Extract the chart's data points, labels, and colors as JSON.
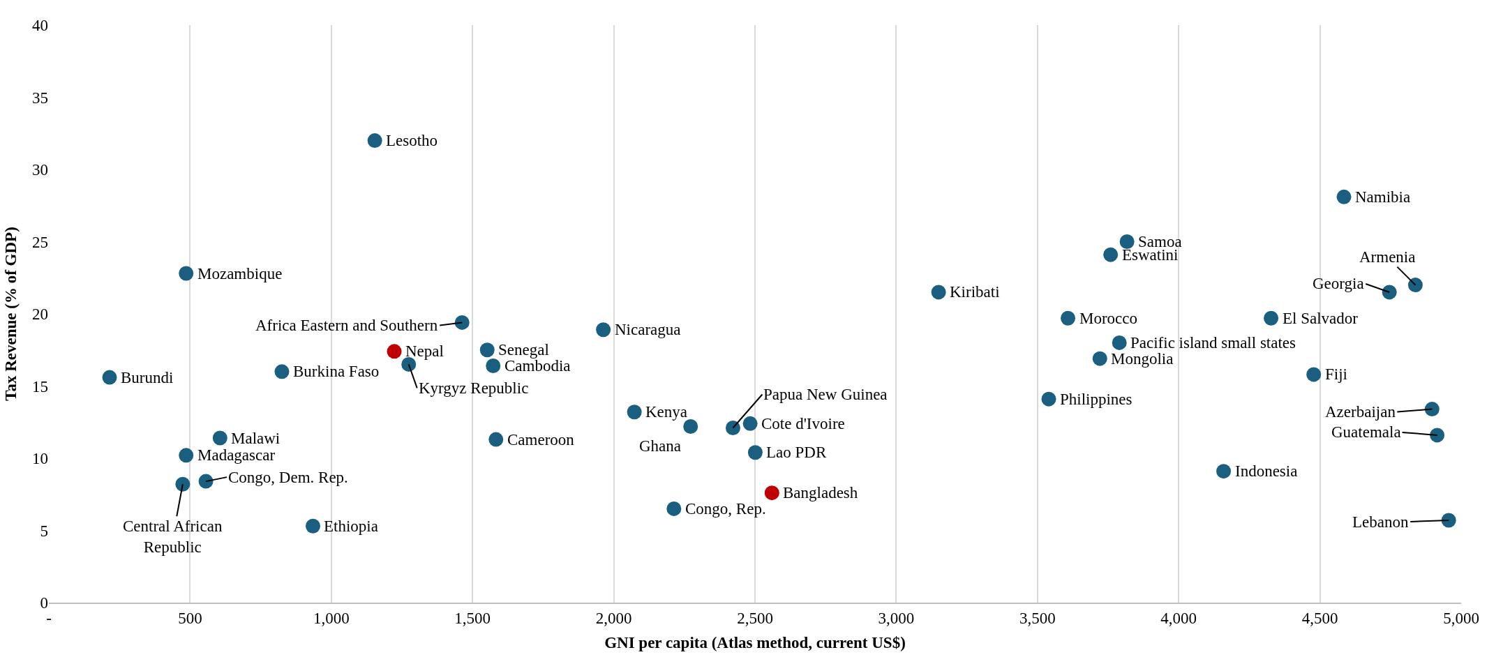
{
  "chart_data": {
    "type": "scatter",
    "xlabel": "GNI per capita (Atlas method, current US$)",
    "ylabel": "Tax Revenue (% of GDP)",
    "xlim": [
      0,
      5000
    ],
    "xticks": [
      {
        "value": 0,
        "label": "-"
      },
      500,
      {
        "value": 1000,
        "label": "1,000"
      },
      {
        "value": 1500,
        "label": "1,500"
      },
      {
        "value": 2000,
        "label": "2,000"
      },
      {
        "value": 2500,
        "label": "2,500"
      },
      {
        "value": 3000,
        "label": "3,000"
      },
      {
        "value": 3500,
        "label": "3,500"
      },
      {
        "value": 4000,
        "label": "4,000"
      },
      {
        "value": 4500,
        "label": "4,500"
      },
      {
        "value": 5000,
        "label": "5,000"
      }
    ],
    "ylim": [
      0,
      40
    ],
    "yticks": [
      0,
      5,
      10,
      15,
      20,
      25,
      30,
      35,
      40
    ],
    "grid": "x",
    "marker": "circle",
    "series": [
      {
        "color": "#1a5e80",
        "x": [
          1154,
          486,
          215,
          825,
          606,
          486,
          474,
          556,
          935,
          1463,
          1274,
          1552,
          1573,
          1583,
          1963,
          2073,
          2272,
          2213,
          2422,
          2483,
          2501,
          3150,
          3540,
          3608,
          3721,
          3790,
          3759,
          3817,
          4585,
          4746,
          4838,
          4327,
          4478,
          4897,
          4915,
          4159,
          4956
        ],
        "values": [
          32.0,
          22.8,
          15.6,
          16.0,
          11.4,
          10.2,
          8.2,
          8.4,
          5.3,
          19.4,
          16.5,
          17.5,
          16.4,
          11.3,
          18.9,
          13.2,
          12.2,
          6.5,
          12.1,
          12.4,
          10.4,
          21.5,
          14.1,
          19.7,
          16.9,
          18.0,
          24.1,
          25.0,
          28.1,
          21.5,
          22.0,
          19.7,
          15.8,
          13.4,
          11.6,
          9.1,
          5.7
        ]
      },
      {
        "color": "#c00000",
        "x": [
          1223,
          2560
        ],
        "values": [
          17.4,
          7.6
        ]
      }
    ],
    "annotations": [
      {
        "text": "Lesotho",
        "x": 1154,
        "y": 32.0
      },
      {
        "text": "Mozambique",
        "x": 486,
        "y": 22.8
      },
      {
        "text": "Burundi",
        "x": 215,
        "y": 15.6
      },
      {
        "text": "Burkina Faso",
        "x": 825,
        "y": 16.0
      },
      {
        "text": "Malawi",
        "x": 606,
        "y": 11.4
      },
      {
        "text": "Madagascar",
        "x": 486,
        "y": 10.2
      },
      {
        "text": "Central African Republic",
        "x": 474,
        "y": 8.2
      },
      {
        "text": "Congo, Dem. Rep.",
        "x": 556,
        "y": 8.4
      },
      {
        "text": "Ethiopia",
        "x": 935,
        "y": 5.3
      },
      {
        "text": "Africa Eastern and Southern",
        "x": 1463,
        "y": 19.4
      },
      {
        "text": "Kyrgyz Republic",
        "x": 1274,
        "y": 16.5
      },
      {
        "text": "Senegal",
        "x": 1552,
        "y": 17.5
      },
      {
        "text": "Cambodia",
        "x": 1573,
        "y": 16.4
      },
      {
        "text": "Cameroon",
        "x": 1583,
        "y": 11.3
      },
      {
        "text": "Nicaragua",
        "x": 1963,
        "y": 18.9
      },
      {
        "text": "Kenya",
        "x": 2073,
        "y": 13.2
      },
      {
        "text": "Ghana",
        "x": 2272,
        "y": 12.2
      },
      {
        "text": "Congo, Rep.",
        "x": 2213,
        "y": 6.5
      },
      {
        "text": "Papua New Guinea",
        "x": 2422,
        "y": 12.1
      },
      {
        "text": "Cote d'Ivoire",
        "x": 2483,
        "y": 12.4
      },
      {
        "text": "Lao PDR",
        "x": 2501,
        "y": 10.4
      },
      {
        "text": "Kiribati",
        "x": 3150,
        "y": 21.5
      },
      {
        "text": "Philippines",
        "x": 3540,
        "y": 14.1
      },
      {
        "text": "Morocco",
        "x": 3608,
        "y": 19.7
      },
      {
        "text": "Mongolia",
        "x": 3721,
        "y": 16.9
      },
      {
        "text": "Pacific island small states",
        "x": 3790,
        "y": 18.0
      },
      {
        "text": "Eswatini",
        "x": 3759,
        "y": 24.1
      },
      {
        "text": "Samoa",
        "x": 3817,
        "y": 25.0
      },
      {
        "text": "Namibia",
        "x": 4585,
        "y": 28.1
      },
      {
        "text": "Georgia",
        "x": 4746,
        "y": 21.5
      },
      {
        "text": "Armenia",
        "x": 4838,
        "y": 22.0
      },
      {
        "text": "El Salvador",
        "x": 4327,
        "y": 19.7
      },
      {
        "text": "Fiji",
        "x": 4478,
        "y": 15.8
      },
      {
        "text": "Azerbaijan",
        "x": 4897,
        "y": 13.4
      },
      {
        "text": "Guatemala",
        "x": 4915,
        "y": 11.6
      },
      {
        "text": "Indonesia",
        "x": 4159,
        "y": 9.1
      },
      {
        "text": "Lebanon",
        "x": 4956,
        "y": 5.7
      },
      {
        "text": "Nepal",
        "x": 1223,
        "y": 17.4
      },
      {
        "text": "Bangladesh",
        "x": 2560,
        "y": 7.6
      }
    ]
  }
}
